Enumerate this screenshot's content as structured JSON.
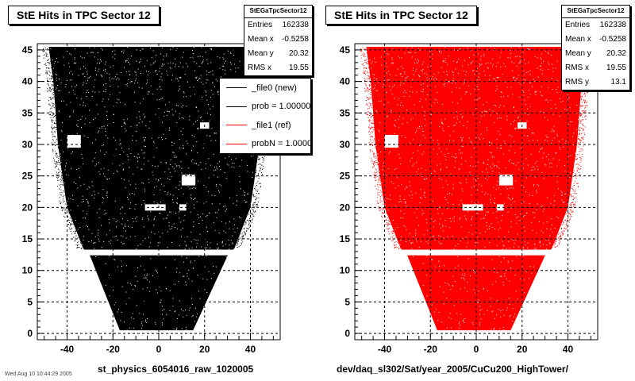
{
  "chart_data": [
    {
      "type": "scatter",
      "title": "StE Hits in TPC Sector 12",
      "xlabel": "st_physics_6054016_raw_1020005",
      "ylabel": "",
      "xlim": [
        -53,
        53
      ],
      "ylim": [
        -1,
        46
      ],
      "x_ticks": [
        -40,
        -20,
        0,
        20,
        40
      ],
      "y_ticks": [
        0,
        5,
        10,
        15,
        20,
        25,
        30,
        35,
        40,
        45
      ],
      "grid": true,
      "marker_color": "#000000",
      "stats": {
        "header": "StEGaTpcSector12",
        "rows": [
          {
            "label": "Entries",
            "value": "162338"
          },
          {
            "label": "Mean x",
            "value": "-0.5258"
          },
          {
            "label": "Mean y",
            "value": "20.32"
          },
          {
            "label": "RMS x",
            "value": "19.55"
          }
        ]
      },
      "legend": {
        "placement": "top-right",
        "entries": [
          {
            "label": "_file0 (new)",
            "color": "#000000"
          },
          {
            "label": "prob = 1.000000",
            "color": "#000000"
          },
          {
            "label": "_file1 (ref)",
            "color": "#ff0000"
          },
          {
            "label": "probN = 1.000000",
            "color": "#ff0000"
          }
        ]
      },
      "outline_vertices": [
        [
          -48,
          45.5
        ],
        [
          -46,
          40
        ],
        [
          -44,
          30
        ],
        [
          -40,
          20
        ],
        [
          -33,
          13.5
        ],
        [
          -30,
          12.3
        ],
        [
          -17,
          0.5
        ],
        [
          15,
          0.5
        ],
        [
          30,
          12.3
        ],
        [
          33,
          13.5
        ],
        [
          40,
          20
        ],
        [
          44,
          30
        ],
        [
          46,
          40
        ],
        [
          48,
          45.5
        ]
      ],
      "gaps": [
        {
          "y_from": 12.4,
          "y_to": 13.3
        },
        {
          "x_from": -40,
          "x_to": -34,
          "y_from": 29.5,
          "y_to": 31.5
        },
        {
          "x_from": -6,
          "x_to": 3,
          "y_from": 19.5,
          "y_to": 20.5
        },
        {
          "x_from": 9,
          "x_to": 12,
          "y_from": 19.5,
          "y_to": 20.5
        },
        {
          "x_from": 18,
          "x_to": 22,
          "y_from": 32.5,
          "y_to": 33.5
        },
        {
          "x_from": 10,
          "x_to": 16,
          "y_from": 23.5,
          "y_to": 25.2
        }
      ]
    },
    {
      "type": "scatter",
      "title": "StE Hits in TPC Sector 12",
      "xlabel": "dev/daq_sl302/Sat/year_2005/CuCu200_HighTower/",
      "ylabel": "",
      "xlim": [
        -53,
        53
      ],
      "ylim": [
        -1,
        46
      ],
      "x_ticks": [
        -40,
        -20,
        0,
        20,
        40
      ],
      "y_ticks": [
        0,
        5,
        10,
        15,
        20,
        25,
        30,
        35,
        40,
        45
      ],
      "grid": true,
      "marker_color": "#ff0000",
      "stats": {
        "header": "StEGaTpcSector12",
        "rows": [
          {
            "label": "Entries",
            "value": "162338"
          },
          {
            "label": "Mean x",
            "value": "-0.5258"
          },
          {
            "label": "Mean y",
            "value": "20.32"
          },
          {
            "label": "RMS x",
            "value": "19.55"
          },
          {
            "label": "RMS y",
            "value": "13.1"
          }
        ]
      },
      "outline_vertices": [
        [
          -48,
          45.5
        ],
        [
          -46,
          40
        ],
        [
          -44,
          30
        ],
        [
          -40,
          20
        ],
        [
          -33,
          13.5
        ],
        [
          -30,
          12.3
        ],
        [
          -17,
          0.5
        ],
        [
          15,
          0.5
        ],
        [
          30,
          12.3
        ],
        [
          33,
          13.5
        ],
        [
          40,
          20
        ],
        [
          44,
          30
        ],
        [
          46,
          40
        ],
        [
          48,
          45.5
        ]
      ],
      "gaps": [
        {
          "y_from": 12.4,
          "y_to": 13.3
        },
        {
          "x_from": -40,
          "x_to": -34,
          "y_from": 29.5,
          "y_to": 31.5
        },
        {
          "x_from": -6,
          "x_to": 3,
          "y_from": 19.5,
          "y_to": 20.5
        },
        {
          "x_from": 9,
          "x_to": 12,
          "y_from": 19.5,
          "y_to": 20.5
        },
        {
          "x_from": 18,
          "x_to": 22,
          "y_from": 32.5,
          "y_to": 33.5
        },
        {
          "x_from": 10,
          "x_to": 16,
          "y_from": 23.5,
          "y_to": 25.2
        }
      ]
    }
  ],
  "footer": "Wed Aug 10 10:44:29 2005"
}
